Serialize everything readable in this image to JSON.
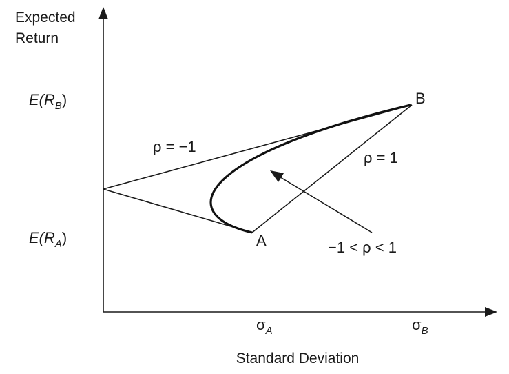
{
  "labels": {
    "y_axis_line1": "Expected",
    "y_axis_line2": "Return",
    "x_axis": "Standard Deviation",
    "er_b_prefix": "E(R",
    "er_b_sub": "B",
    "er_b_suffix": ")",
    "er_a_prefix": "E(R",
    "er_a_sub": "A",
    "er_a_suffix": ")",
    "sigma_a_symbol": "σ",
    "sigma_a_sub": "A",
    "sigma_b_symbol": "σ",
    "sigma_b_sub": "B",
    "point_a": "A",
    "point_b": "B",
    "rho_minus_one": "ρ = −1",
    "rho_one": "ρ = 1",
    "rho_between": "−1 < ρ < 1"
  },
  "colors": {
    "ink": "#1a1a1a",
    "background": "#ffffff"
  }
}
